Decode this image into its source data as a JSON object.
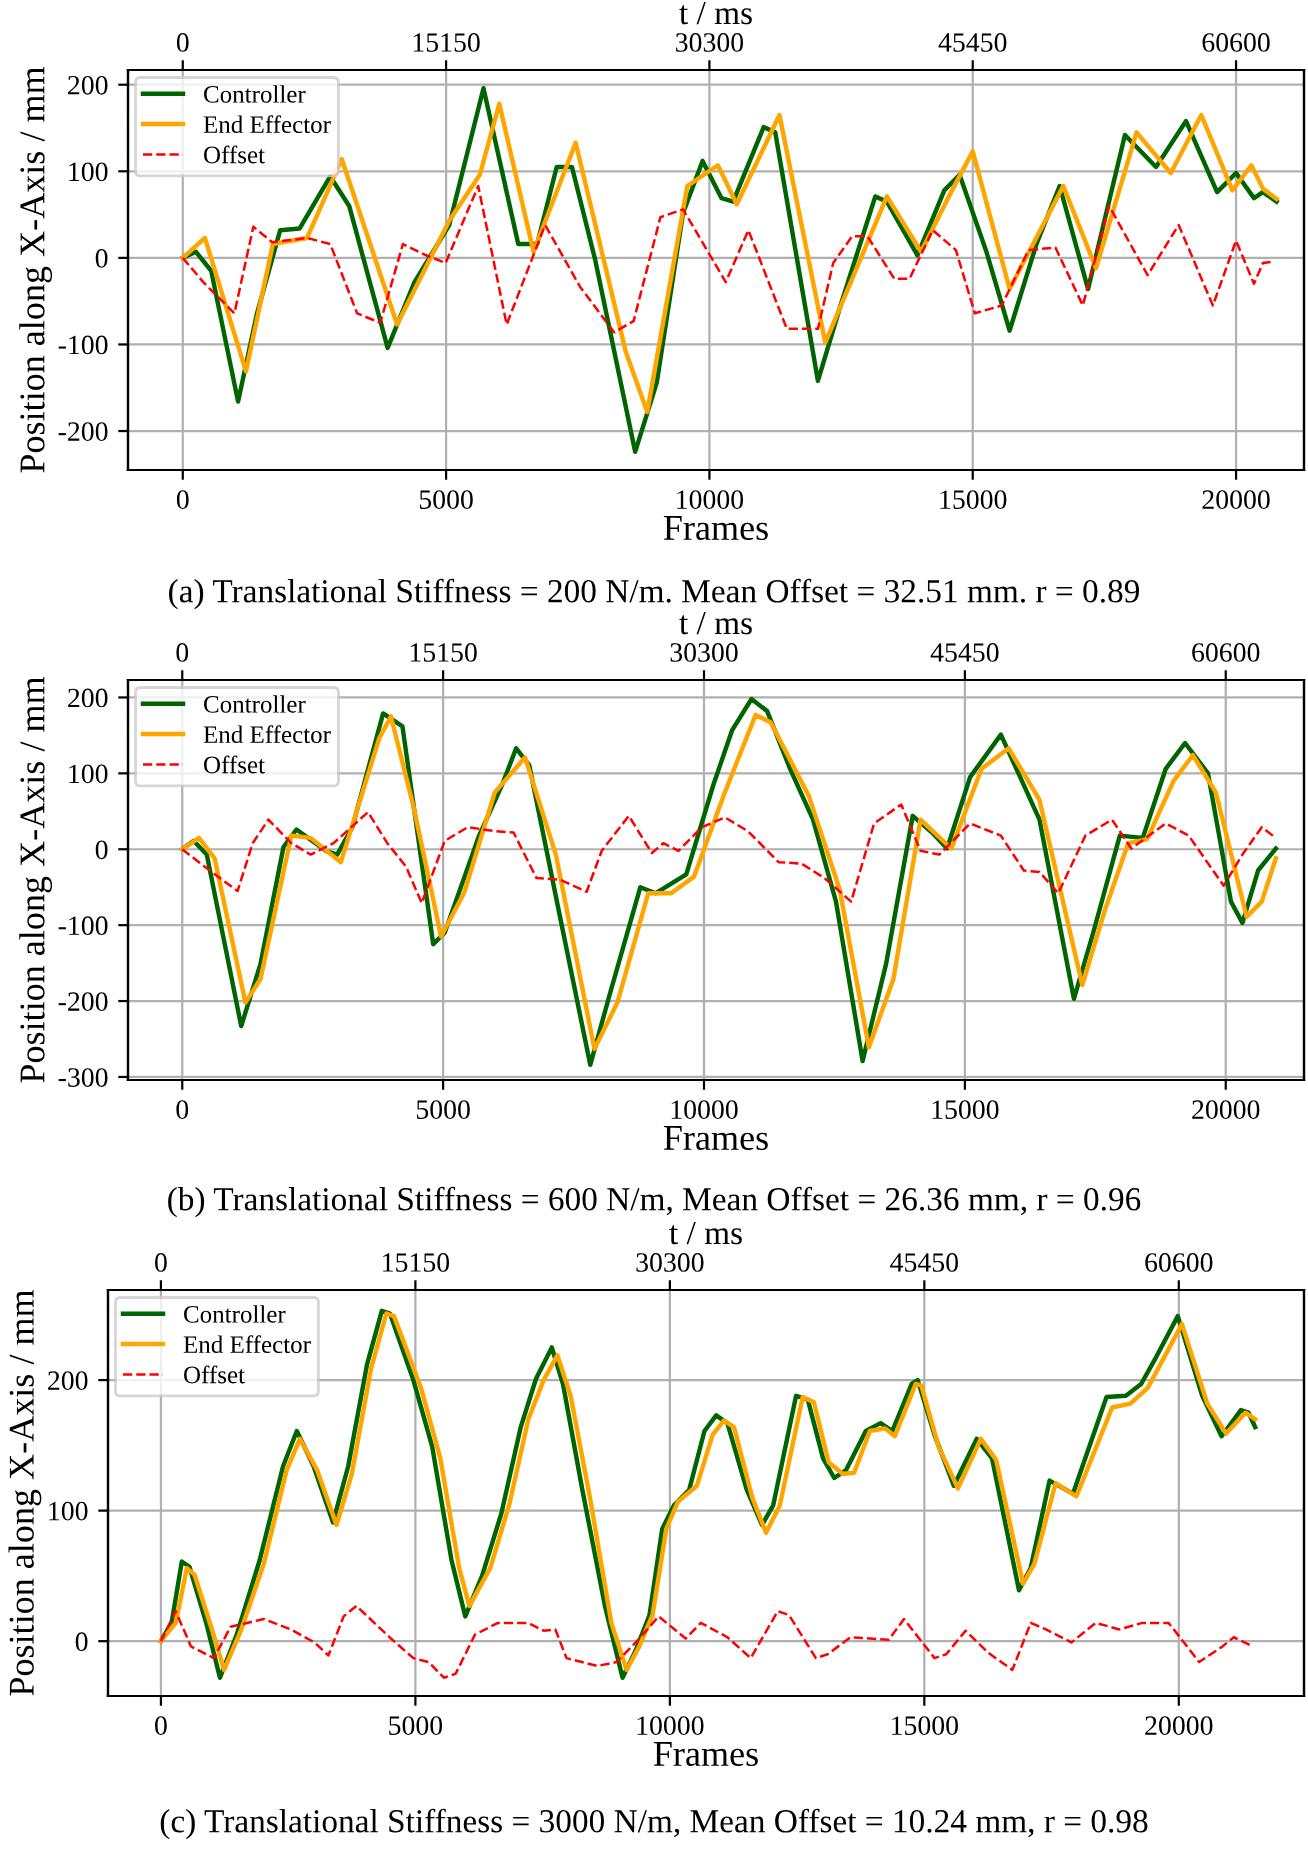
{
  "chart_data": [
    {
      "type": "line",
      "xlabel": "Frames",
      "ylabel": "Position along X-Axis / mm",
      "x2label": "t / ms",
      "xlim": [
        -1040,
        21290
      ],
      "xticks": [
        0,
        5000,
        10000,
        15000,
        20000
      ],
      "x2lim": [
        -3151,
        64509
      ],
      "x2ticks": [
        0,
        15150,
        30300,
        45450,
        60600
      ],
      "ylim": [
        -245,
        217
      ],
      "yticks": [
        -200,
        -100,
        0,
        100,
        200
      ],
      "grid": true,
      "legend": "top left",
      "annotations": [
        "(a) Translational Stiffness = 200 N/m. Mean Offset = 32.51 mm. r = 0.89"
      ],
      "series": [
        {
          "name": "Controller",
          "color": "#006400",
          "line_style": "solid",
          "x": [
            0,
            250,
            540,
            1050,
            1410,
            1850,
            2220,
            2800,
            3160,
            3890,
            4400,
            5060,
            5710,
            6370,
            6730,
            7100,
            7390,
            7830,
            8590,
            9000,
            9500,
            9870,
            10230,
            10450,
            11030,
            11250,
            12060,
            12490,
            13150,
            13370,
            13950,
            14460,
            14750,
            15260,
            15700,
            16210,
            16650,
            17190,
            17890,
            18480,
            19050,
            19640,
            20000,
            20340,
            20510,
            20770
          ],
          "values": [
            0,
            7,
            -15,
            -166,
            -64,
            32,
            34,
            94,
            60,
            -104,
            -28,
            38,
            196,
            16,
            16,
            105,
            105,
            -2,
            -224,
            -144,
            52,
            112,
            69,
            65,
            151,
            145,
            -142,
            -55,
            71,
            65,
            3,
            78,
            96,
            7,
            -84,
            16,
            83,
            -36,
            142,
            105,
            158,
            76,
            98,
            69,
            76,
            65
          ]
        },
        {
          "name": "End Effector",
          "color": "#ffa500",
          "line_style": "solid",
          "x": [
            0,
            420,
            1200,
            1710,
            2360,
            3020,
            4070,
            5060,
            5640,
            6010,
            6660,
            7460,
            8410,
            8820,
            9580,
            10160,
            10520,
            11330,
            12200,
            13370,
            14020,
            14530,
            15000,
            15700,
            16720,
            17340,
            18110,
            18760,
            19340,
            19930,
            20290,
            20510,
            20770
          ],
          "values": [
            0,
            23,
            -131,
            16,
            23,
            114,
            -77,
            43,
            96,
            178,
            7,
            133,
            -108,
            -178,
            83,
            107,
            62,
            165,
            -98,
            71,
            7,
            69,
            123,
            -36,
            83,
            -12,
            145,
            98,
            165,
            78,
            107,
            80,
            68
          ]
        },
        {
          "name": "Offset",
          "color": "#ff0000",
          "line_style": "dashed",
          "x": [
            0,
            390,
            980,
            1340,
            1700,
            2360,
            2800,
            3310,
            3750,
            4180,
            4620,
            4990,
            5610,
            6150,
            6880,
            7540,
            8190,
            8560,
            9070,
            9500,
            10310,
            10740,
            11470,
            12060,
            12350,
            12710,
            13000,
            13510,
            13800,
            14240,
            14680,
            15040,
            15550,
            16060,
            16570,
            17090,
            17590,
            18320,
            18910,
            19560,
            20000,
            20340,
            20510,
            20730
          ],
          "values": [
            0,
            -28,
            -64,
            36,
            18,
            23,
            16,
            -64,
            -75,
            16,
            3,
            -6,
            83,
            -77,
            38,
            -33,
            -86,
            -73,
            47,
            56,
            -28,
            32,
            -82,
            -82,
            -6,
            25,
            25,
            -24,
            -24,
            32,
            9,
            -64,
            -55,
            9,
            12,
            -55,
            60,
            -20,
            38,
            -55,
            20,
            -30,
            -6,
            -4
          ]
        }
      ]
    },
    {
      "type": "line",
      "xlabel": "Frames",
      "ylabel": "Position along X-Axis / mm",
      "x2label": "t / ms",
      "xlim": [
        -1040,
        21500
      ],
      "xticks": [
        0,
        5000,
        10000,
        15000,
        20000
      ],
      "x2lim": [
        -3151,
        65145
      ],
      "x2ticks": [
        0,
        15150,
        30300,
        45450,
        60600
      ],
      "ylim": [
        -304,
        223
      ],
      "yticks": [
        -300,
        -200,
        -100,
        0,
        100,
        200
      ],
      "grid": true,
      "legend": "top left",
      "annotations": [
        "(b) Translational Stiffness = 600 N/m, Mean Offset = 26.36 mm, r = 0.96"
      ],
      "series": [
        {
          "name": "Controller",
          "color": "#006400",
          "line_style": "solid",
          "x": [
            0,
            220,
            470,
            1130,
            1500,
            1940,
            2190,
            2750,
            2970,
            3260,
            3850,
            4220,
            4810,
            5030,
            5690,
            6130,
            6400,
            6650,
            7240,
            7820,
            8190,
            8780,
            9070,
            9660,
            10180,
            10540,
            10910,
            11210,
            11650,
            12090,
            12530,
            13040,
            13490,
            14000,
            14370,
            14660,
            15100,
            15690,
            16430,
            17090,
            17460,
            17970,
            18410,
            18850,
            19220,
            19660,
            20100,
            20320,
            20620,
            20960
          ],
          "values": [
            0,
            11,
            -7,
            -233,
            -151,
            3,
            26,
            -2,
            -7,
            29,
            179,
            162,
            -125,
            -110,
            18,
            85,
            133,
            111,
            -89,
            -284,
            -192,
            -50,
            -58,
            -33,
            85,
            157,
            198,
            182,
            106,
            39,
            -69,
            -279,
            -151,
            44,
            22,
            1,
            95,
            151,
            39,
            -197,
            -110,
            18,
            15,
            106,
            140,
            100,
            -69,
            -97,
            -28,
            1
          ]
        },
        {
          "name": "End Effector",
          "color": "#ffa500",
          "line_style": "solid",
          "x": [
            0,
            320,
            620,
            1210,
            1500,
            2090,
            2460,
            3040,
            3780,
            4000,
            4440,
            4960,
            5400,
            5990,
            6570,
            7160,
            7900,
            8340,
            8930,
            9370,
            9810,
            10400,
            10990,
            11280,
            12010,
            12600,
            13160,
            13630,
            14150,
            14740,
            15320,
            15840,
            16430,
            17250,
            17690,
            18130,
            18490,
            19000,
            19370,
            19810,
            20400,
            20690,
            20960
          ],
          "values": [
            0,
            15,
            -12,
            -202,
            -171,
            18,
            15,
            -17,
            147,
            175,
            54,
            -115,
            -58,
            75,
            121,
            -7,
            -263,
            -202,
            -58,
            -58,
            -36,
            75,
            177,
            167,
            70,
            -53,
            -261,
            -171,
            39,
            1,
            106,
            133,
            65,
            -179,
            -79,
            8,
            13,
            90,
            124,
            75,
            -89,
            -69,
            -12
          ]
        },
        {
          "name": "Offset",
          "color": "#ff0000",
          "line_style": "dashed",
          "x": [
            0,
            320,
            760,
            1060,
            1350,
            1650,
            2090,
            2460,
            2900,
            3560,
            3930,
            4290,
            4590,
            5030,
            5470,
            5990,
            6350,
            6790,
            7240,
            7750,
            8040,
            8560,
            9000,
            9220,
            9510,
            9960,
            10400,
            10840,
            11430,
            11870,
            12310,
            12820,
            13260,
            13780,
            14150,
            14510,
            15100,
            15690,
            16130,
            16430,
            16790,
            17310,
            17820,
            18190,
            18850,
            19290,
            19960,
            20320,
            20690,
            20960
          ],
          "values": [
            0,
            -17,
            -40,
            -55,
            8,
            39,
            8,
            -7,
            8,
            49,
            8,
            -23,
            -71,
            11,
            29,
            24,
            22,
            -38,
            -40,
            -56,
            -2,
            44,
            -5,
            8,
            -2,
            29,
            42,
            24,
            -17,
            -19,
            -38,
            -69,
            34,
            59,
            -2,
            -7,
            34,
            18,
            -28,
            -30,
            -58,
            18,
            39,
            1,
            34,
            18,
            -48,
            -7,
            29,
            15
          ]
        }
      ]
    },
    {
      "type": "line",
      "xlabel": "Frames",
      "ylabel": "Position along X-Axis / mm",
      "x2label": "t / ms",
      "xlim": [
        -1040,
        22460
      ],
      "xticks": [
        0,
        5000,
        10000,
        15000,
        20000
      ],
      "x2lim": [
        -3151,
        68054
      ],
      "x2ticks": [
        0,
        15150,
        30300,
        45450,
        60600
      ],
      "ylim": [
        -42,
        269
      ],
      "yticks": [
        0,
        100,
        200
      ],
      "grid": true,
      "legend": "top left",
      "annotations": [
        "(c) Translational Stiffness = 3000 N/m, Mean Offset = 10.24 mm, r = 0.98"
      ],
      "series": [
        {
          "name": "Controller",
          "color": "#006400",
          "line_style": "solid",
          "x": [
            0,
            210,
            410,
            560,
            890,
            1160,
            1490,
            1940,
            2400,
            2670,
            3000,
            3380,
            3680,
            4050,
            4340,
            4500,
            4960,
            5330,
            5710,
            5980,
            6310,
            6690,
            7070,
            7370,
            7680,
            7900,
            8280,
            8730,
            9070,
            9330,
            9600,
            9850,
            10080,
            10380,
            10680,
            10910,
            11130,
            11510,
            11810,
            12030,
            12480,
            12710,
            13010,
            13230,
            13460,
            13850,
            14140,
            14370,
            14750,
            14870,
            15200,
            15580,
            16030,
            16330,
            16860,
            17090,
            17460,
            17920,
            18580,
            18960,
            19260,
            19560,
            19980,
            20460,
            20840,
            21220,
            21370,
            21500
          ],
          "values": [
            0,
            14,
            61,
            57,
            14,
            -28,
            5,
            62,
            134,
            161,
            134,
            91,
            134,
            212,
            253,
            251,
            200,
            149,
            62,
            19,
            50,
            98,
            164,
            201,
            225,
            197,
            116,
            26,
            -28,
            -7,
            20,
            86,
            104,
            116,
            161,
            173,
            167,
            116,
            89,
            104,
            188,
            185,
            140,
            125,
            131,
            161,
            167,
            161,
            197,
            200,
            158,
            119,
            155,
            140,
            39,
            56,
            123,
            113,
            187,
            188,
            197,
            218,
            249,
            188,
            157,
            177,
            175,
            164
          ]
        },
        {
          "name": "End Effector",
          "color": "#ffa500",
          "line_style": "solid",
          "x": [
            0,
            290,
            510,
            660,
            1010,
            1240,
            1570,
            2020,
            2470,
            2730,
            3070,
            3450,
            3750,
            4130,
            4430,
            4580,
            5110,
            5490,
            5860,
            6060,
            6470,
            6840,
            7220,
            7520,
            7790,
            8050,
            8430,
            8850,
            9150,
            9400,
            9660,
            9930,
            10160,
            10530,
            10840,
            11060,
            11260,
            11620,
            11890,
            12160,
            12610,
            12830,
            13120,
            13400,
            13620,
            13930,
            14230,
            14420,
            14830,
            14940,
            15280,
            15660,
            16110,
            16410,
            16940,
            17160,
            17580,
            17990,
            18690,
            19050,
            19390,
            19720,
            20060,
            20560,
            20930,
            21310,
            21500
          ],
          "values": [
            0,
            14,
            56,
            51,
            8,
            -22,
            8,
            59,
            131,
            155,
            131,
            89,
            128,
            209,
            251,
            249,
            194,
            140,
            56,
            27,
            56,
            104,
            170,
            200,
            219,
            188,
            110,
            14,
            -22,
            -4,
            20,
            86,
            107,
            119,
            158,
            169,
            164,
            110,
            83,
            104,
            187,
            183,
            137,
            128,
            129,
            161,
            163,
            157,
            197,
            196,
            149,
            117,
            155,
            139,
            44,
            59,
            121,
            111,
            179,
            182,
            194,
            218,
            243,
            182,
            159,
            175,
            170
          ]
        },
        {
          "name": "Offset",
          "color": "#ff0000",
          "line_style": "dashed",
          "x": [
            0,
            290,
            590,
            1040,
            1370,
            2020,
            2550,
            3020,
            3290,
            3590,
            3840,
            4520,
            4960,
            5260,
            5560,
            5790,
            6170,
            6620,
            7220,
            7520,
            7750,
            7970,
            8580,
            8950,
            9330,
            9780,
            10310,
            10610,
            11130,
            11590,
            12120,
            12340,
            12870,
            13100,
            13550,
            13930,
            14300,
            14600,
            15200,
            15430,
            15810,
            16260,
            16730,
            17090,
            17390,
            17890,
            18370,
            18830,
            19280,
            19800,
            20400,
            20860,
            21080,
            21460
          ],
          "values": [
            0,
            23,
            -4,
            -13,
            11,
            17,
            9,
            -1,
            -11,
            19,
            27,
            2,
            -13,
            -16,
            -28,
            -25,
            5,
            14,
            14,
            8,
            9,
            -13,
            -19,
            -16,
            -1,
            19,
            2,
            14,
            3,
            -13,
            23,
            20,
            -13,
            -10,
            3,
            2,
            1,
            17,
            -13,
            -10,
            8,
            -9,
            -22,
            14,
            9,
            -1,
            14,
            9,
            14,
            14,
            -16,
            -4,
            3,
            -4
          ]
        }
      ]
    }
  ]
}
